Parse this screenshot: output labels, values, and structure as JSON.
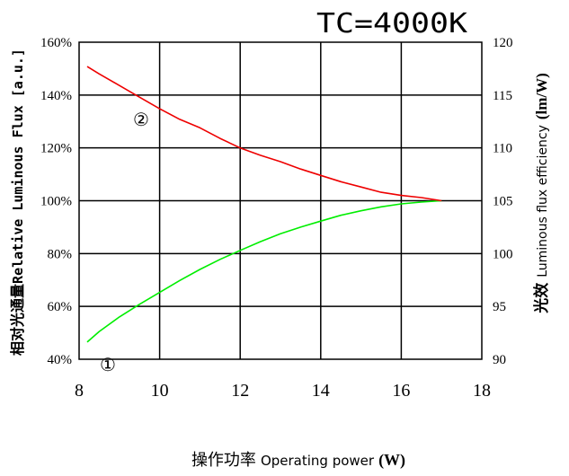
{
  "chart_data": {
    "type": "line",
    "title": "TC=4000K",
    "xlabel": {
      "cn": "操作功率",
      "en": "Operating power",
      "unit": "(W)"
    },
    "ylabel_left": {
      "cn": "相对光通量",
      "en": "Relative Luminous Flux [a.u.]"
    },
    "ylabel_right": {
      "cn": "光效",
      "en": "Luminous flux efficiency",
      "unit": "(lm/W)"
    },
    "xlim": [
      8,
      18
    ],
    "ylim_left": [
      40,
      160
    ],
    "ylim_right": [
      90,
      120
    ],
    "x_ticks": [
      8,
      10,
      12,
      14,
      16,
      18
    ],
    "y_left_ticks": [
      "40%",
      "60%",
      "80%",
      "100%",
      "120%",
      "140%",
      "160%"
    ],
    "y_left_tick_values": [
      40,
      60,
      80,
      100,
      120,
      140,
      160
    ],
    "y_right_ticks": [
      90,
      95,
      100,
      105,
      110,
      115,
      120
    ],
    "grid": true,
    "series": [
      {
        "label": "①",
        "axis": "left",
        "color": "#00ee00",
        "x": [
          8.2,
          8.5,
          9.0,
          9.5,
          10.0,
          10.5,
          11.0,
          11.5,
          12.0,
          12.5,
          13.0,
          13.5,
          14.0,
          14.5,
          15.0,
          15.5,
          16.0,
          16.5,
          17.0
        ],
        "y": [
          46.5,
          50.5,
          56.0,
          60.8,
          65.3,
          69.8,
          74.0,
          77.8,
          81.2,
          84.5,
          87.5,
          90.0,
          92.3,
          94.5,
          96.2,
          97.7,
          98.8,
          99.5,
          100.0
        ]
      },
      {
        "label": "②",
        "axis": "right",
        "color": "#ee0000",
        "x": [
          8.2,
          8.5,
          9.0,
          9.5,
          10.0,
          10.5,
          11.0,
          11.5,
          12.0,
          12.5,
          13.0,
          13.5,
          14.0,
          14.5,
          15.0,
          15.5,
          16.0,
          16.5,
          17.0
        ],
        "y": [
          117.7,
          117.0,
          115.9,
          114.8,
          113.7,
          112.7,
          111.9,
          110.9,
          110.0,
          109.3,
          108.7,
          108.0,
          107.4,
          106.8,
          106.3,
          105.8,
          105.5,
          105.3,
          105.0
        ]
      }
    ]
  }
}
